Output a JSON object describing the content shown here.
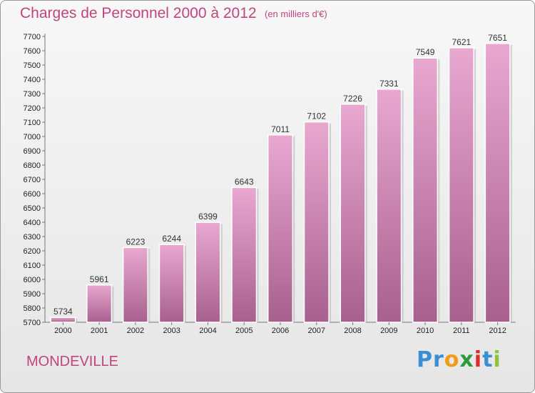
{
  "header": {
    "title": "Charges de Personnel 2000 à 2012",
    "subtitle": "(en milliers d'€)"
  },
  "footer": {
    "commune": "MONDEVILLE",
    "logo_letters": [
      {
        "char": "P",
        "color": "#3a8fd4"
      },
      {
        "char": "r",
        "color": "#3a8fd4"
      },
      {
        "char": "o",
        "color": "#f39a1c"
      },
      {
        "char": "x",
        "color": "#2b9a3a"
      },
      {
        "char": "i",
        "color": "#e02b2b"
      },
      {
        "char": "t",
        "color": "#3a8fd4"
      },
      {
        "char": "i",
        "color": "#8fc43a"
      }
    ]
  },
  "colors": {
    "title": "#c0447e",
    "bar_top": "#e8a8d0",
    "bar_bottom": "#a8608e"
  },
  "chart_data": {
    "type": "bar",
    "title": "Charges de Personnel 2000 à 2012",
    "subtitle": "(en milliers d'€)",
    "categories": [
      "2000",
      "2001",
      "2002",
      "2003",
      "2004",
      "2005",
      "2006",
      "2007",
      "2008",
      "2009",
      "2010",
      "2011",
      "2012"
    ],
    "values": [
      5734,
      5961,
      6223,
      6244,
      6399,
      6643,
      7011,
      7102,
      7226,
      7331,
      7549,
      7621,
      7651
    ],
    "ylim": [
      5700,
      7700
    ],
    "ytick_step": 100,
    "grid": false,
    "legend": "none"
  }
}
